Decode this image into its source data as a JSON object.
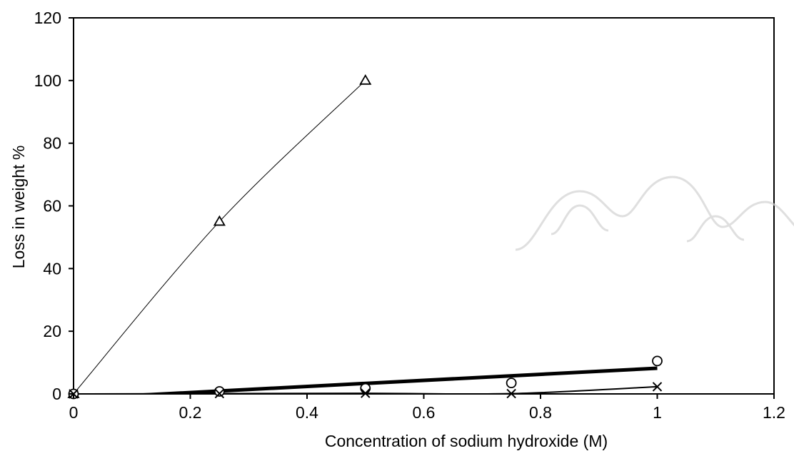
{
  "chart_data": {
    "type": "scatter",
    "title": "",
    "xlabel": "Concentration of sodium hydroxide (M)",
    "ylabel": "Loss in weight %",
    "xlim": [
      0,
      1.2
    ],
    "ylim": [
      0,
      120
    ],
    "xticks": [
      0,
      0.2,
      0.4,
      0.6,
      0.8,
      1,
      1.2
    ],
    "xtick_labels": [
      "0",
      "0.2",
      "0.4",
      "0.6",
      "0.8",
      "1",
      "1.2"
    ],
    "yticks": [
      0,
      20,
      40,
      60,
      80,
      100,
      120
    ],
    "ytick_labels": [
      "0",
      "20",
      "40",
      "60",
      "80",
      "100",
      "120"
    ],
    "grid": false,
    "legend": "none",
    "series": [
      {
        "marker": "triangle",
        "line": "smooth-thin",
        "points": [
          [
            0,
            0
          ],
          [
            0.25,
            55
          ],
          [
            0.5,
            100
          ]
        ]
      },
      {
        "marker": "circle",
        "line": "none",
        "points": [
          [
            0,
            0
          ],
          [
            0.25,
            0.8
          ],
          [
            0.5,
            1.8
          ],
          [
            0.75,
            3.5
          ],
          [
            1,
            10.5
          ]
        ]
      },
      {
        "marker": "cross",
        "line": "smooth-medium",
        "points": [
          [
            0,
            0
          ],
          [
            0.25,
            0.1
          ],
          [
            0.5,
            0.2
          ],
          [
            0.75,
            0.1
          ],
          [
            1,
            2.3
          ]
        ]
      },
      {
        "marker": "none",
        "line": "trendline-bold",
        "points": [
          [
            0,
            -1.5
          ],
          [
            1,
            8.2
          ]
        ]
      }
    ]
  }
}
